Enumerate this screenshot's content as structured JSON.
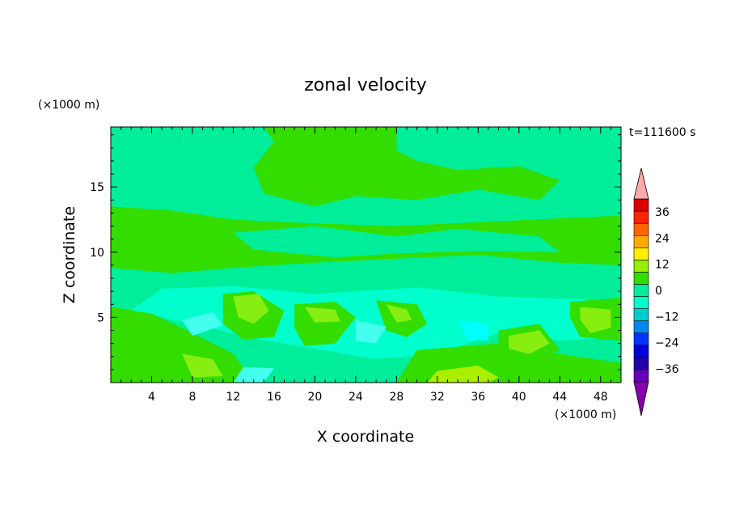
{
  "chart_data": {
    "type": "heatmap",
    "title": "zonal velocity",
    "xlabel": "X coordinate",
    "ylabel": "Z coordinate",
    "x_unit": "(×1000 m)",
    "y_unit": "(×1000 m)",
    "time_label": "t=111600 s",
    "xlim": [
      0,
      50
    ],
    "ylim": [
      0,
      19.6
    ],
    "x_ticks": [
      "4",
      "8",
      "12",
      "16",
      "20",
      "24",
      "28",
      "32",
      "36",
      "40",
      "44",
      "48"
    ],
    "y_ticks": [
      "5",
      "10",
      "15"
    ],
    "colorbar": {
      "tick_labels": [
        "36",
        "24",
        "12",
        "0",
        "−12",
        "−24",
        "−36"
      ],
      "levels": [
        -42,
        -36,
        -30,
        -24,
        -18,
        -12,
        -6,
        0,
        6,
        12,
        18,
        24,
        30,
        36,
        42
      ],
      "colors": [
        "#8800aa",
        "#6600bb",
        "#2200aa",
        "#0000dd",
        "#0033ff",
        "#0088ee",
        "#00cccc",
        "#00ffcc",
        "#00ee99",
        "#33dd00",
        "#99ee00",
        "#ffee00",
        "#ffaa00",
        "#ff6600",
        "#ff2200",
        "#dd0000",
        "#ffaaaa"
      ],
      "extend_low_color": "#8800aa",
      "extend_high_color": "#ffaaaa"
    },
    "colors": {
      "neg_band": "#00ffcc",
      "neg_band_2": "#00ee99",
      "zero_band": "#22ff88",
      "pos_band": "#33dd00",
      "pos_band_2": "#88ee11",
      "strong_pos": "#aaee00",
      "neg_weak": "#44ffee",
      "cyan": "#00ffff"
    }
  }
}
